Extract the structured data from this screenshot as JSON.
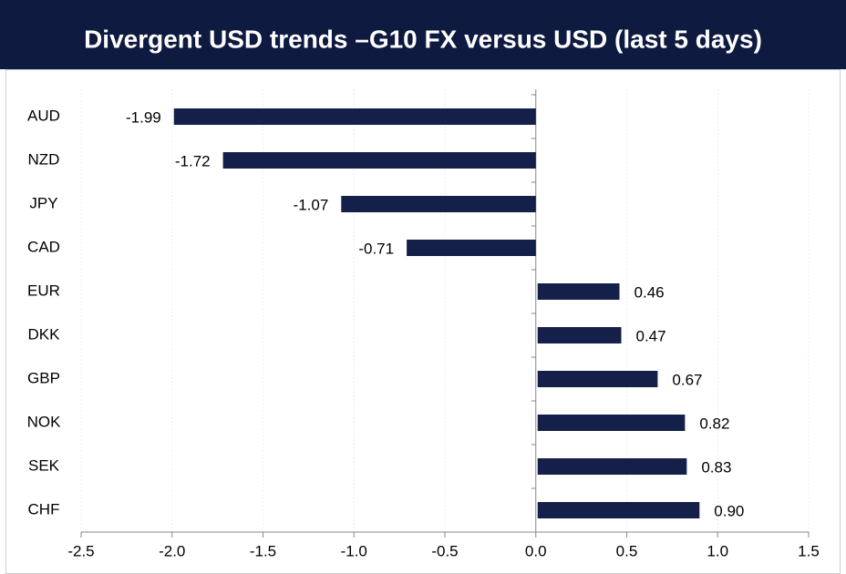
{
  "chart_data": {
    "type": "hbar",
    "title": "Divergent USD trends –G10 FX versus USD (last 5 days)",
    "categories": [
      "AUD",
      "NZD",
      "JPY",
      "CAD",
      "EUR",
      "DKK",
      "GBP",
      "NOK",
      "SEK",
      "CHF"
    ],
    "values": [
      -1.99,
      -1.72,
      -1.07,
      -0.71,
      0.46,
      0.47,
      0.67,
      0.82,
      0.83,
      0.9
    ],
    "value_labels": [
      "-1.99",
      "-1.72",
      "-1.07",
      "-0.71",
      "0.46",
      "0.47",
      "0.67",
      "0.82",
      "0.83",
      "0.90"
    ],
    "color": "#14204a",
    "xlim": [
      -2.5,
      1.5
    ],
    "xticks": [
      -2.5,
      {
        "value": -2,
        "label": "-2.0"
      },
      -1.5,
      {
        "value": -1,
        "label": "-1.0"
      },
      -0.5,
      {
        "value": 0,
        "label": "0.0"
      },
      0.5,
      {
        "value": 1,
        "label": "1.0"
      },
      1.5
    ],
    "grid": true
  }
}
